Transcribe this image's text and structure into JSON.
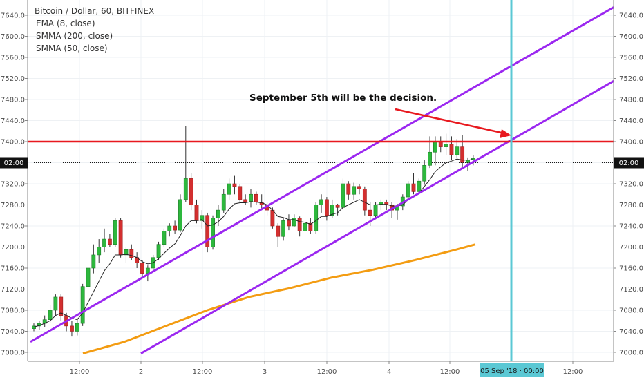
{
  "header": {
    "title": "Bitcoin / Dollar, 60, BITFINEX",
    "indicators": [
      "EMA (8, close)",
      "SMMA (200, close)",
      "SMMA (50, close)"
    ]
  },
  "annotation": {
    "text": "September 5th will be the decision."
  },
  "price_tag": {
    "label": "02:00"
  },
  "time_tag": {
    "label": "05 Sep '18 · 00:00"
  },
  "colors": {
    "up": "#26a69a",
    "up_fill": "#2db83d",
    "down": "#d32f2f",
    "ema": "#222222",
    "smma200": "#f39c12",
    "channel": "#9b27f0",
    "resistance": "#e8191f",
    "vline": "#5bc8d4",
    "grid": "#eef1f4"
  },
  "chart_data": {
    "type": "candlestick",
    "title": "Bitcoin / Dollar, 60, BITFINEX",
    "y_ticks": [
      "7000.0",
      "7040.0",
      "7080.0",
      "7120.0",
      "7160.0",
      "7200.0",
      "7240.0",
      "7280.0",
      "7320.0",
      "7360.0",
      "7400.0",
      "7440.0",
      "7480.0",
      "7520.0",
      "7560.0",
      "7600.0",
      "7640.0"
    ],
    "ylim": [
      6990,
      7660
    ],
    "x_ticks": [
      "12:00",
      "2",
      "12:00",
      "3",
      "12:00",
      "4",
      "12:00",
      "05 Sep '18 · 00:00",
      "12:00"
    ],
    "resistance_level": 7400,
    "current_price_line": 7360,
    "candles": [
      [
        7045,
        7055,
        7040,
        7050
      ],
      [
        7050,
        7060,
        7043,
        7055
      ],
      [
        7055,
        7070,
        7048,
        7062
      ],
      [
        7062,
        7090,
        7055,
        7080
      ],
      [
        7080,
        7110,
        7070,
        7105
      ],
      [
        7105,
        7110,
        7060,
        7070
      ],
      [
        7070,
        7075,
        7040,
        7050
      ],
      [
        7050,
        7060,
        7030,
        7040
      ],
      [
        7040,
        7065,
        7032,
        7055
      ],
      [
        7055,
        7130,
        7050,
        7125
      ],
      [
        7125,
        7260,
        7120,
        7160
      ],
      [
        7160,
        7205,
        7150,
        7185
      ],
      [
        7185,
        7215,
        7170,
        7200
      ],
      [
        7200,
        7235,
        7190,
        7215
      ],
      [
        7215,
        7225,
        7200,
        7205
      ],
      [
        7205,
        7255,
        7200,
        7250
      ],
      [
        7250,
        7255,
        7180,
        7185
      ],
      [
        7185,
        7200,
        7170,
        7195
      ],
      [
        7195,
        7205,
        7175,
        7180
      ],
      [
        7180,
        7190,
        7160,
        7170
      ],
      [
        7170,
        7175,
        7140,
        7150
      ],
      [
        7150,
        7165,
        7135,
        7160
      ],
      [
        7160,
        7185,
        7155,
        7180
      ],
      [
        7180,
        7210,
        7175,
        7205
      ],
      [
        7205,
        7235,
        7200,
        7230
      ],
      [
        7230,
        7245,
        7220,
        7240
      ],
      [
        7240,
        7250,
        7225,
        7232
      ],
      [
        7232,
        7300,
        7228,
        7290
      ],
      [
        7290,
        7430,
        7285,
        7330
      ],
      [
        7330,
        7340,
        7270,
        7280
      ],
      [
        7280,
        7290,
        7245,
        7250
      ],
      [
        7250,
        7270,
        7235,
        7260
      ],
      [
        7260,
        7265,
        7190,
        7200
      ],
      [
        7200,
        7260,
        7195,
        7255
      ],
      [
        7255,
        7280,
        7240,
        7270
      ],
      [
        7270,
        7310,
        7265,
        7300
      ],
      [
        7300,
        7330,
        7290,
        7320
      ],
      [
        7320,
        7335,
        7300,
        7315
      ],
      [
        7315,
        7320,
        7285,
        7290
      ],
      [
        7290,
        7300,
        7280,
        7285
      ],
      [
        7285,
        7310,
        7275,
        7300
      ],
      [
        7300,
        7305,
        7280,
        7285
      ],
      [
        7285,
        7300,
        7270,
        7280
      ],
      [
        7280,
        7285,
        7260,
        7270
      ],
      [
        7270,
        7275,
        7235,
        7240
      ],
      [
        7240,
        7245,
        7200,
        7220
      ],
      [
        7220,
        7255,
        7212,
        7250
      ],
      [
        7250,
        7262,
        7232,
        7240
      ],
      [
        7240,
        7262,
        7238,
        7255
      ],
      [
        7255,
        7258,
        7220,
        7230
      ],
      [
        7230,
        7250,
        7225,
        7245
      ],
      [
        7245,
        7255,
        7225,
        7230
      ],
      [
        7230,
        7285,
        7225,
        7280
      ],
      [
        7280,
        7300,
        7265,
        7290
      ],
      [
        7290,
        7295,
        7250,
        7260
      ],
      [
        7260,
        7290,
        7255,
        7280
      ],
      [
        7280,
        7282,
        7260,
        7275
      ],
      [
        7275,
        7330,
        7270,
        7320
      ],
      [
        7320,
        7325,
        7290,
        7300
      ],
      [
        7300,
        7322,
        7290,
        7315
      ],
      [
        7315,
        7320,
        7300,
        7310
      ],
      [
        7310,
        7315,
        7260,
        7270
      ],
      [
        7270,
        7285,
        7240,
        7260
      ],
      [
        7260,
        7285,
        7255,
        7280
      ],
      [
        7280,
        7290,
        7270,
        7285
      ],
      [
        7285,
        7290,
        7270,
        7280
      ],
      [
        7280,
        7285,
        7255,
        7270
      ],
      [
        7270,
        7282,
        7252,
        7278
      ],
      [
        7278,
        7300,
        7270,
        7295
      ],
      [
        7295,
        7325,
        7290,
        7320
      ],
      [
        7320,
        7340,
        7300,
        7305
      ],
      [
        7305,
        7330,
        7300,
        7325
      ],
      [
        7325,
        7365,
        7318,
        7355
      ],
      [
        7355,
        7410,
        7350,
        7380
      ],
      [
        7380,
        7410,
        7355,
        7400
      ],
      [
        7400,
        7410,
        7380,
        7390
      ],
      [
        7390,
        7415,
        7375,
        7395
      ],
      [
        7395,
        7410,
        7365,
        7375
      ],
      [
        7375,
        7405,
        7370,
        7390
      ],
      [
        7390,
        7412,
        7350,
        7360
      ],
      [
        7360,
        7370,
        7345,
        7365
      ],
      [
        7365,
        7375,
        7355,
        7368
      ]
    ],
    "ema8": [
      7048,
      7051,
      7055,
      7060,
      7070,
      7075,
      7070,
      7065,
      7062,
      7075,
      7095,
      7115,
      7135,
      7155,
      7168,
      7185,
      7185,
      7186,
      7184,
      7180,
      7172,
      7168,
      7170,
      7178,
      7188,
      7198,
      7206,
      7222,
      7240,
      7250,
      7250,
      7252,
      7240,
      7242,
      7248,
      7258,
      7272,
      7282,
      7284,
      7284,
      7286,
      7285,
      7284,
      7280,
      7270,
      7258,
      7256,
      7252,
      7252,
      7248,
      7247,
      7243,
      7250,
      7258,
      7258,
      7262,
      7265,
      7275,
      7280,
      7285,
      7290,
      7285,
      7280,
      7280,
      7281,
      7281,
      7278,
      7278,
      7280,
      7290,
      7295,
      7302,
      7315,
      7328,
      7343,
      7352,
      7360,
      7363,
      7367,
      7365,
      7365,
      7366
    ],
    "smma200": [
      [
        120,
        6998
      ],
      [
        180,
        7020
      ],
      [
        240,
        7050
      ],
      [
        300,
        7080
      ],
      [
        360,
        7105
      ],
      [
        420,
        7122
      ],
      [
        480,
        7142
      ],
      [
        540,
        7157
      ],
      [
        600,
        7175
      ],
      [
        660,
        7195
      ],
      [
        688,
        7205
      ]
    ],
    "channel_upper": [
      [
        44,
        7020
      ],
      [
        888,
        7655
      ]
    ],
    "channel_lower": [
      [
        204,
        6998
      ],
      [
        888,
        7515
      ]
    ]
  }
}
